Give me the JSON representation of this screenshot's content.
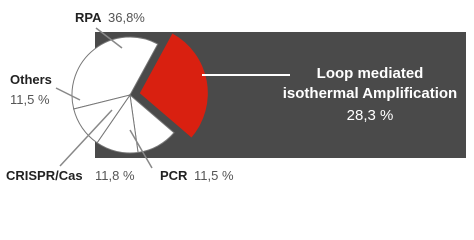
{
  "chart_data": {
    "type": "pie",
    "categories": [
      "RPA",
      "Loop mediated\nisothermal Amplification",
      "PCR",
      "CRISPR/Cas",
      "Others"
    ],
    "values": [
      36.8,
      28.3,
      11.5,
      11.8,
      11.5
    ],
    "value_labels": [
      "36,8%",
      "28,3 %",
      "11,5 %",
      "11,8 %",
      "11,5 %"
    ],
    "colors": [
      "#ffffff",
      "#d92010",
      "#ffffff",
      "#ffffff",
      "#ffffff"
    ]
  }
}
